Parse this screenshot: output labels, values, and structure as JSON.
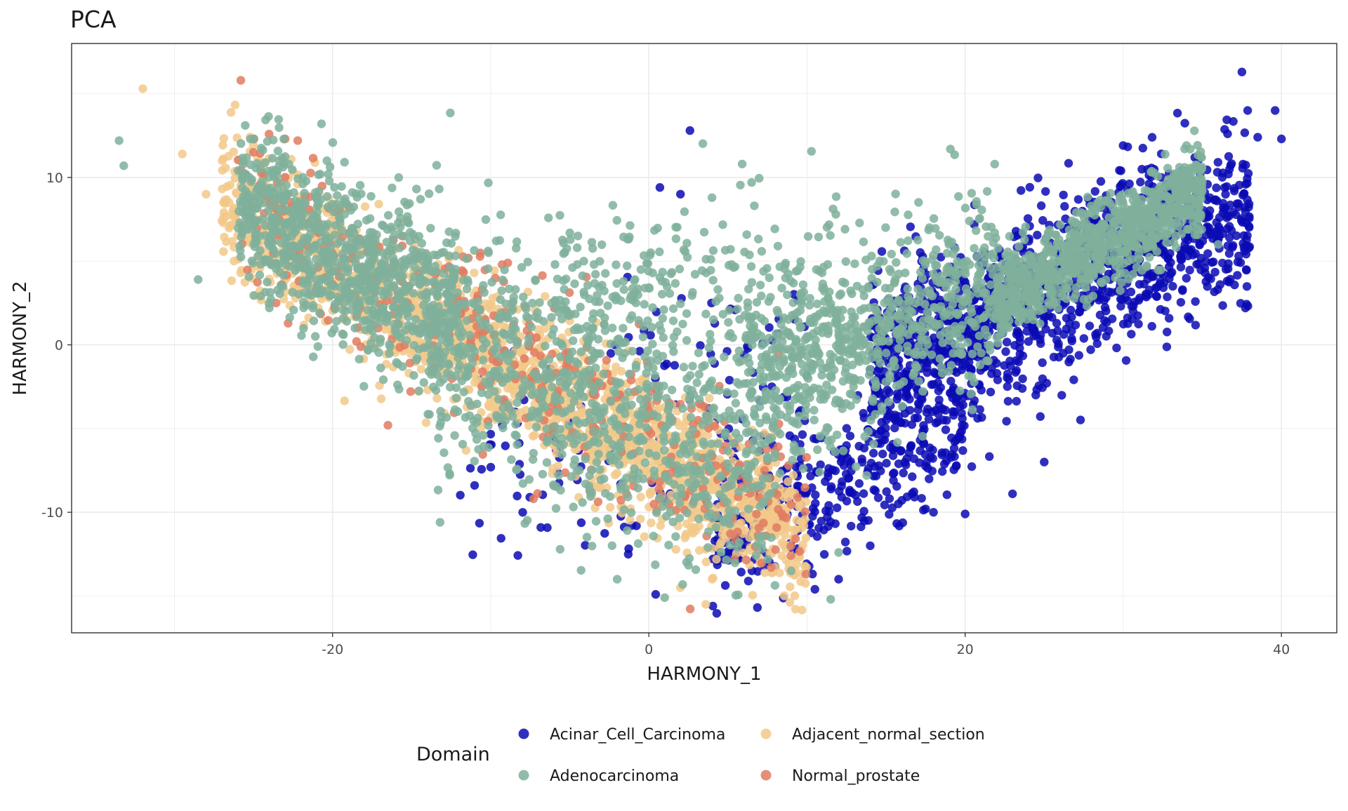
{
  "chart_data": {
    "type": "scatter",
    "title": "PCA",
    "xlabel": "HARMONY_1",
    "ylabel": "HARMONY_2",
    "xlim": [
      -36.5,
      43.5
    ],
    "ylim": [
      -17.2,
      18.0
    ],
    "x_ticks": [
      -20,
      0,
      20,
      40
    ],
    "x_tick_labels": [
      "-20",
      "0",
      "20",
      "40"
    ],
    "y_ticks": [
      -10,
      0,
      10
    ],
    "y_tick_labels": [
      "-10",
      "0",
      "10"
    ],
    "grid": true,
    "legend_title": "Domain",
    "legend_position": "bottom",
    "series": [
      {
        "name": "Acinar_Cell_Carcinoma",
        "color": "#0a0ab4",
        "clusters": [
          {
            "x": [
              14,
              38
            ],
            "y": [
              -7,
              14
            ],
            "n": 1300,
            "trend": 0.4,
            "trend_x": 14,
            "spread": 2.6
          },
          {
            "x": [
              4,
              20
            ],
            "y": [
              -14,
              -2
            ],
            "n": 380,
            "trend": 0.45,
            "trend_x": 4,
            "spread": 2.0
          },
          {
            "x": [
              -12,
              10
            ],
            "y": [
              -14,
              4
            ],
            "n": 140,
            "trend": 0.3,
            "trend_x": -12,
            "spread": 3.5
          }
        ],
        "points": [
          {
            "x": 37.5,
            "y": 16.3
          },
          {
            "x": 2.6,
            "y": 12.8
          },
          {
            "x": 39.6,
            "y": 14.0
          },
          {
            "x": 40.0,
            "y": 12.3
          },
          {
            "x": 38.5,
            "y": 12.4
          },
          {
            "x": 20.0,
            "y": -10.1
          },
          {
            "x": 18.0,
            "y": -10.0
          },
          {
            "x": 23.0,
            "y": -8.9
          },
          {
            "x": 25.0,
            "y": -7.0
          },
          {
            "x": 10.5,
            "y": -14.6
          },
          {
            "x": 12.0,
            "y": -14.0
          },
          {
            "x": 17.5,
            "y": -9.8
          },
          {
            "x": 14.0,
            "y": -12.0
          },
          {
            "x": 0.7,
            "y": 9.4
          },
          {
            "x": 2.0,
            "y": 9.0
          }
        ]
      },
      {
        "name": "Adjacent_normal_section",
        "color": "#f2c98a",
        "clusters": [
          {
            "x": [
              -27,
              10
            ],
            "y": [
              -12,
              9
            ],
            "n": 1800,
            "trend": -0.55,
            "trend_x": -27,
            "spread": 2.0
          }
        ],
        "points": [
          {
            "x": -32.0,
            "y": 15.3
          },
          {
            "x": -29.5,
            "y": 11.4
          },
          {
            "x": 3.6,
            "y": -15.5
          },
          {
            "x": -28.0,
            "y": 9.0
          },
          {
            "x": 2.0,
            "y": -14.5
          },
          {
            "x": 4.0,
            "y": -14.0
          }
        ]
      },
      {
        "name": "Normal_prostate",
        "color": "#e07b62",
        "clusters": [
          {
            "x": [
              -26,
              10
            ],
            "y": [
              -12,
              10
            ],
            "n": 420,
            "trend": -0.55,
            "trend_x": -26,
            "spread": 2.5
          }
        ],
        "points": [
          {
            "x": -25.8,
            "y": 15.8
          },
          {
            "x": -23.0,
            "y": 12.3
          },
          {
            "x": -22.2,
            "y": 12.2
          },
          {
            "x": -16.5,
            "y": -4.8
          },
          {
            "x": -25.0,
            "y": 11.5
          }
        ]
      },
      {
        "name": "Adenocarcinoma",
        "color": "#7fb09b",
        "clusters": [
          {
            "x": [
              -26,
              -12
            ],
            "y": [
              -1,
              11
            ],
            "n": 900,
            "trend": -0.45,
            "trend_x": -26,
            "spread": 2.4
          },
          {
            "x": [
              -14,
              8
            ],
            "y": [
              -13,
              6
            ],
            "n": 800,
            "trend": -0.38,
            "trend_x": -14,
            "spread": 3.8
          },
          {
            "x": [
              -6,
              12
            ],
            "y": [
              -2,
              8
            ],
            "n": 260,
            "trend": 0.0,
            "trend_x": -6,
            "spread": 3.0
          },
          {
            "x": [
              6,
              22
            ],
            "y": [
              -6,
              7
            ],
            "n": 700,
            "trend": 0.38,
            "trend_x": 6,
            "spread": 2.8
          },
          {
            "x": [
              22,
              35
            ],
            "y": [
              2,
              10
            ],
            "n": 900,
            "trend": 0.5,
            "trend_x": 22,
            "spread": 1.3
          }
        ],
        "points": [
          {
            "x": -33.5,
            "y": 12.2
          },
          {
            "x": -33.2,
            "y": 10.7
          },
          {
            "x": -20.7,
            "y": 13.2
          },
          {
            "x": -13.2,
            "y": -10.6
          },
          {
            "x": 11.5,
            "y": -15.2
          },
          {
            "x": 5.9,
            "y": 10.8
          },
          {
            "x": 6.5,
            "y": 9.7
          },
          {
            "x": 9.0,
            "y": -13.5
          },
          {
            "x": 12.0,
            "y": -12.4
          },
          {
            "x": -2.0,
            "y": -14.0
          },
          {
            "x": 1.0,
            "y": -15.1
          },
          {
            "x": -28.5,
            "y": 3.9
          },
          {
            "x": 36.0,
            "y": 6.0
          }
        ]
      }
    ],
    "legend_columns": [
      [
        "Acinar_Cell_Carcinoma",
        "Adenocarcinoma"
      ],
      [
        "Adjacent_normal_section",
        "Normal_prostate"
      ]
    ]
  }
}
